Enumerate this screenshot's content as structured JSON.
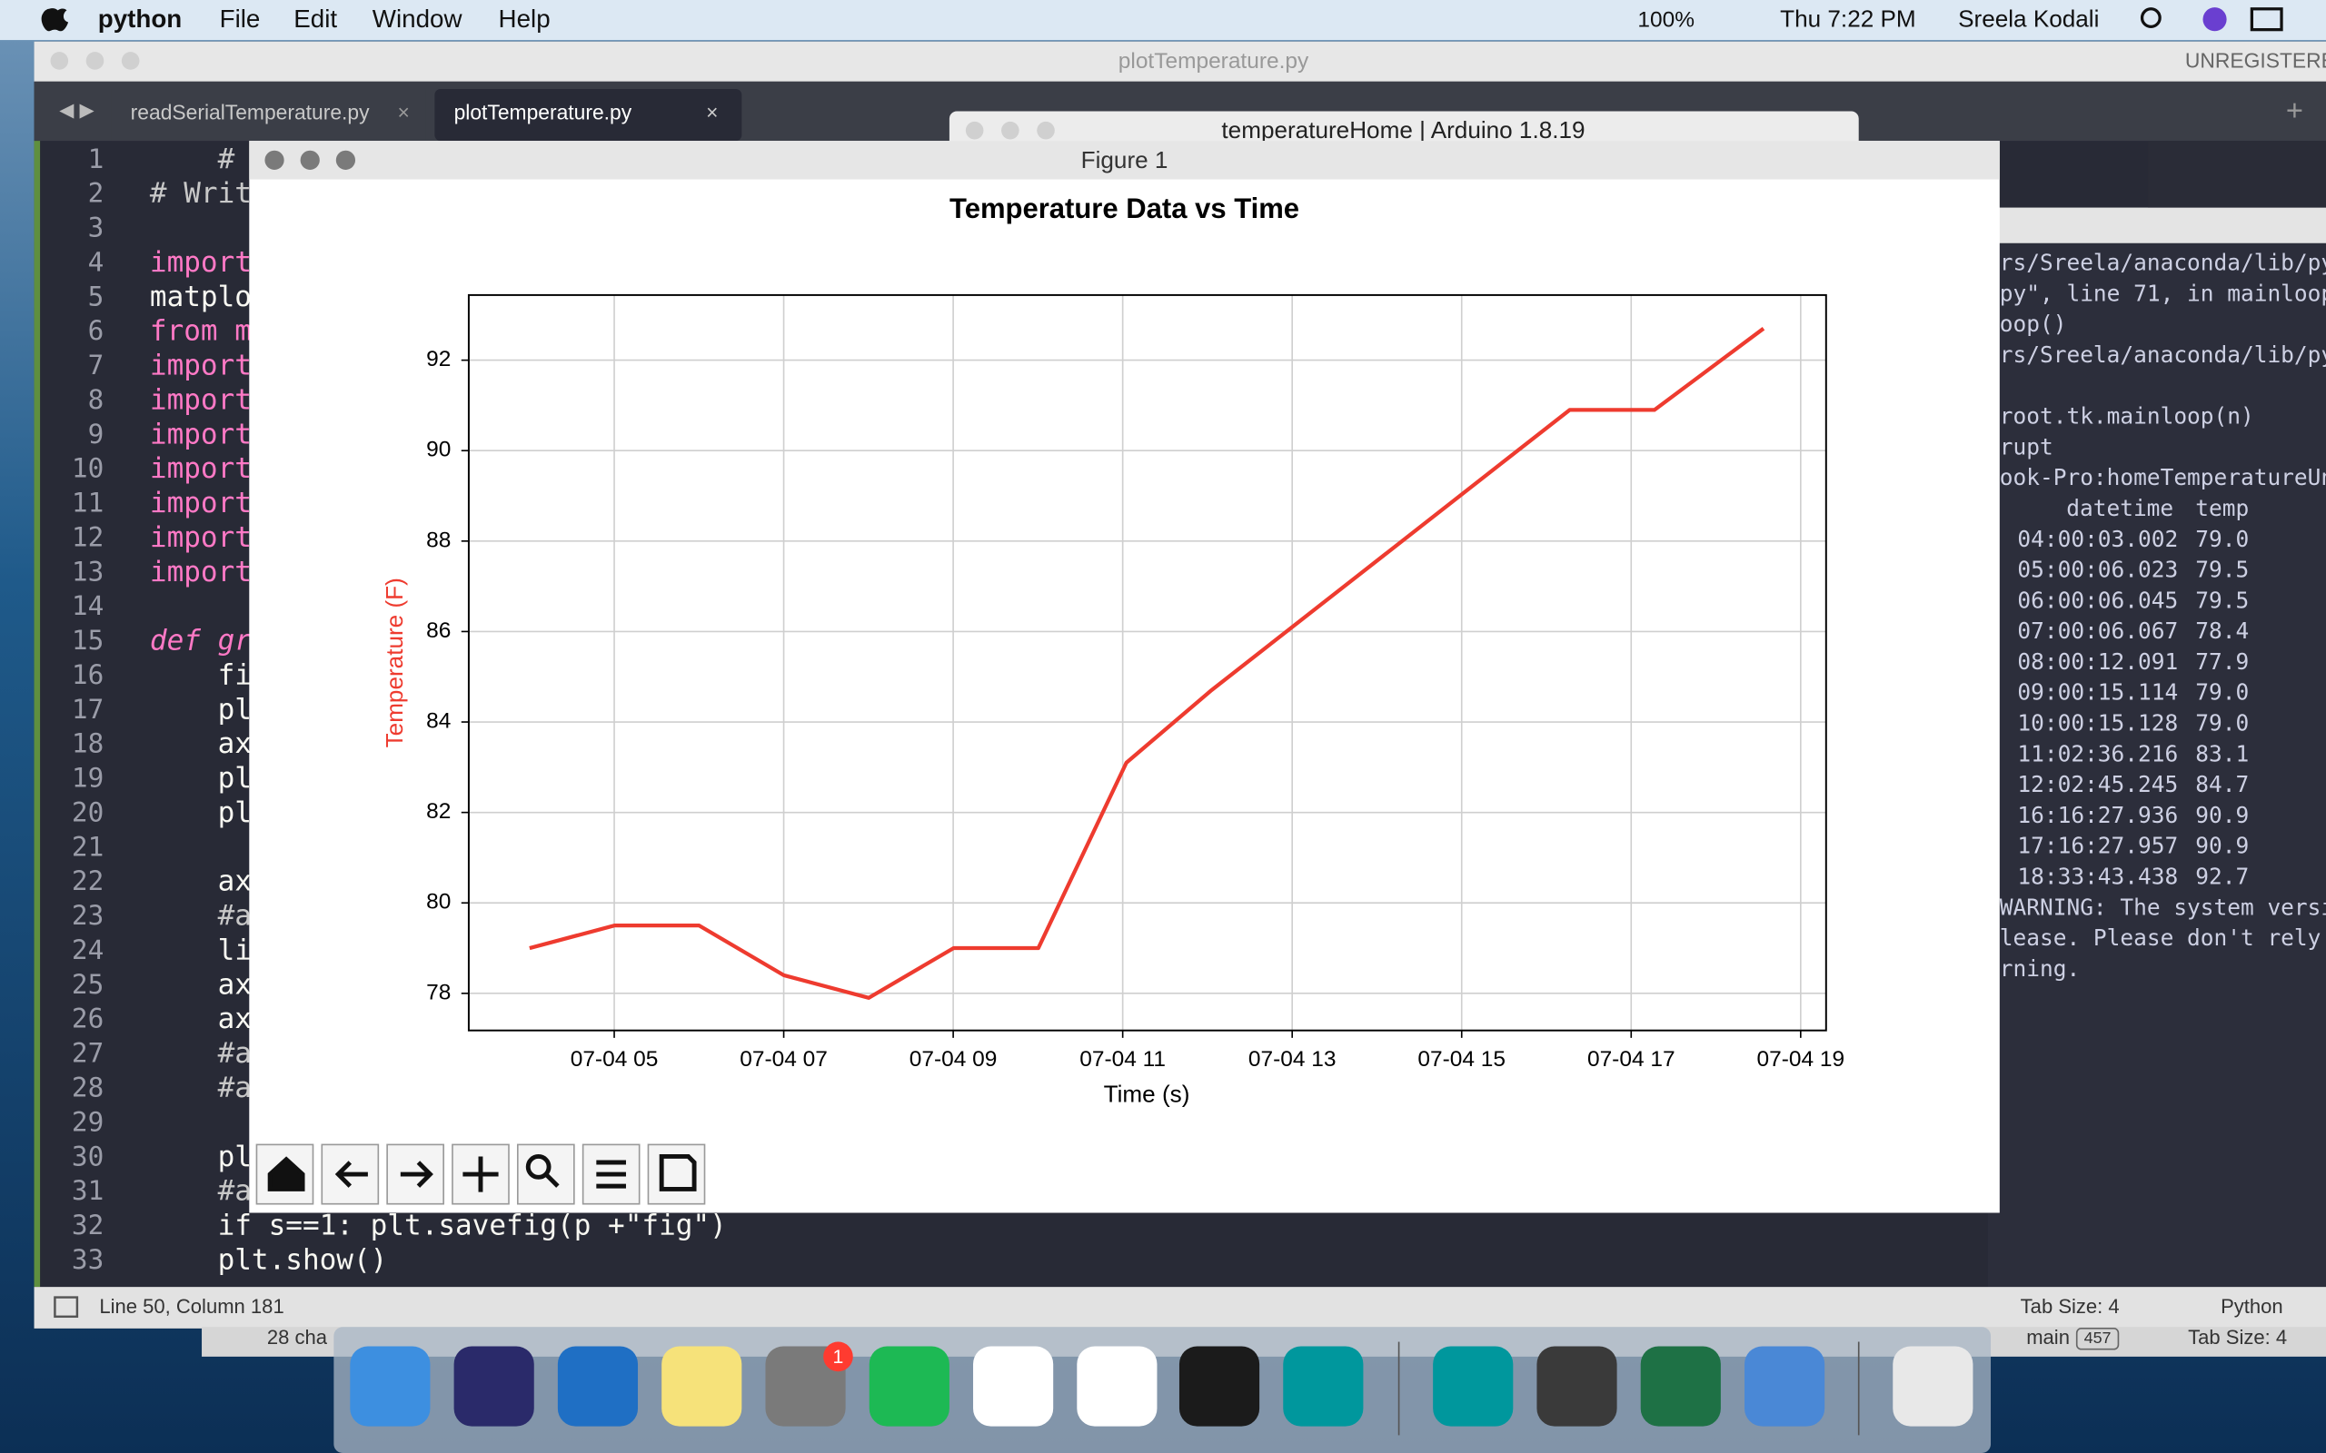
{
  "menu_bar": {
    "app": "python",
    "items": [
      "File",
      "Edit",
      "Window",
      "Help"
    ],
    "battery": "100%",
    "clock": "Thu 7:22 PM",
    "user": "Sreela Kodali"
  },
  "editor": {
    "title": "plotTemperature.py",
    "unregistered": "UNREGISTERED",
    "tabs": [
      "readSerialTemperature.py",
      "plotTemperature.py"
    ],
    "line_numbers": [
      1,
      2,
      3,
      4,
      5,
      6,
      7,
      8,
      9,
      10,
      11,
      12,
      13,
      14,
      15,
      16,
      17,
      18,
      19,
      20,
      21,
      22,
      23,
      24,
      25,
      26,
      27,
      28,
      29,
      30,
      31,
      32,
      33
    ],
    "code": [
      {
        "line": 1,
        "text": "    #"
      },
      {
        "line": 2,
        "text": "# Writ"
      },
      {
        "line": 4,
        "text": "import"
      },
      {
        "line": 5,
        "text": "matplo"
      },
      {
        "line": 6,
        "text": "from m"
      },
      {
        "line": 7,
        "text": "import"
      },
      {
        "line": 8,
        "text": "import"
      },
      {
        "line": 9,
        "text": "import"
      },
      {
        "line": 10,
        "text": "import"
      },
      {
        "line": 11,
        "text": "import"
      },
      {
        "line": 12,
        "text": "import"
      },
      {
        "line": 13,
        "text": "import"
      },
      {
        "line": 15,
        "text": "def gr"
      },
      {
        "line": 16,
        "text": "    fi"
      },
      {
        "line": 17,
        "text": "    pl"
      },
      {
        "line": 18,
        "text": "    ax"
      },
      {
        "line": 19,
        "text": "    pl"
      },
      {
        "line": 20,
        "text": "    pl"
      },
      {
        "line": 22,
        "text": "    ax"
      },
      {
        "line": 23,
        "text": "    #a"
      },
      {
        "line": 24,
        "text": "    li"
      },
      {
        "line": 25,
        "text": "    ax"
      },
      {
        "line": 26,
        "text": "    ax"
      },
      {
        "line": 27,
        "text": "    #a"
      },
      {
        "line": 28,
        "text": "    #a"
      },
      {
        "line": 30,
        "text": "    pl"
      },
      {
        "line": 31,
        "text": "    #a"
      },
      {
        "line": 32,
        "text": "    if s==1: plt.savefig(p +\"fig\")"
      },
      {
        "line": 33,
        "text": "    plt.show()"
      }
    ],
    "status": {
      "position": "Line 50, Column 181",
      "tab_size": "Tab Size: 4",
      "syntax": "Python"
    }
  },
  "arduino_title": "temperatureHome | Arduino 1.8.19",
  "figure": {
    "window_title": "Figure 1"
  },
  "chart_data": {
    "type": "line",
    "title": "Temperature Data vs Time",
    "x_label": "Time (s)",
    "y_label": "Temperature (F)",
    "x": [
      "07-04 04:00:03",
      "07-04 05:00:06",
      "07-04 06:00:06",
      "07-04 07:00:06",
      "07-04 08:00:12",
      "07-04 09:00:15",
      "07-04 10:00:15",
      "07-04 11:02:36",
      "07-04 12:02:45",
      "07-04 16:16:27",
      "07-04 17:16:27",
      "07-04 18:33:43"
    ],
    "series": [
      {
        "name": "temp",
        "color": "#ee3b2f",
        "values": [
          79.0,
          79.5,
          79.5,
          78.4,
          77.9,
          79.0,
          79.0,
          83.1,
          84.7,
          90.9,
          90.9,
          92.7
        ]
      }
    ],
    "xlim": [
      "07-04 03:17",
      "07-04 19:18"
    ],
    "xticks": [
      {
        "value": "07-04 05:00",
        "label": "07-04 05"
      },
      {
        "value": "07-04 07:00",
        "label": "07-04 07"
      },
      {
        "value": "07-04 09:00",
        "label": "07-04 09"
      },
      {
        "value": "07-04 11:00",
        "label": "07-04 11"
      },
      {
        "value": "07-04 13:00",
        "label": "07-04 13"
      },
      {
        "value": "07-04 15:00",
        "label": "07-04 15"
      },
      {
        "value": "07-04 17:00",
        "label": "07-04 17"
      },
      {
        "value": "07-04 19:00",
        "label": "07-04 19"
      }
    ],
    "ylim": [
      77.18,
      93.44
    ],
    "yticks": [
      78,
      80,
      82,
      84,
      86,
      88,
      90,
      92
    ],
    "grid": true
  },
  "terminal": {
    "lines": [
      "rs/Sreela/anaconda/lib/pyth",
      "py\", line 71, in mainloop",
      "oop()",
      "rs/Sreela/anaconda/lib/pyth",
      "root.tk.mainloop(n)",
      "rupt",
      "ook-Pro:homeTemperatureUni"
    ],
    "header": [
      "datetime",
      "temp"
    ],
    "rows": [
      [
        "04:00:03.002",
        "79.0"
      ],
      [
        "05:00:06.023",
        "79.5"
      ],
      [
        "06:00:06.045",
        "79.5"
      ],
      [
        "07:00:06.067",
        "78.4"
      ],
      [
        "08:00:12.091",
        "77.9"
      ],
      [
        "09:00:15.114",
        "79.0"
      ],
      [
        "10:00:15.128",
        "79.0"
      ],
      [
        "11:02:36.216",
        "83.1"
      ],
      [
        "12:02:45.245",
        "84.7"
      ],
      [
        "16:16:27.936",
        "90.9"
      ],
      [
        "17:16:27.957",
        "90.9"
      ],
      [
        "18:33:43.438",
        "92.7"
      ]
    ],
    "warning": [
      "WARNING: The system versio",
      "lease. Please don't rely o",
      "rning."
    ]
  },
  "back_window": {
    "status": "28 cha",
    "branch": "main",
    "count": "457",
    "tab_size": "Tab Size: 4"
  },
  "dock": {
    "badge": "1"
  }
}
